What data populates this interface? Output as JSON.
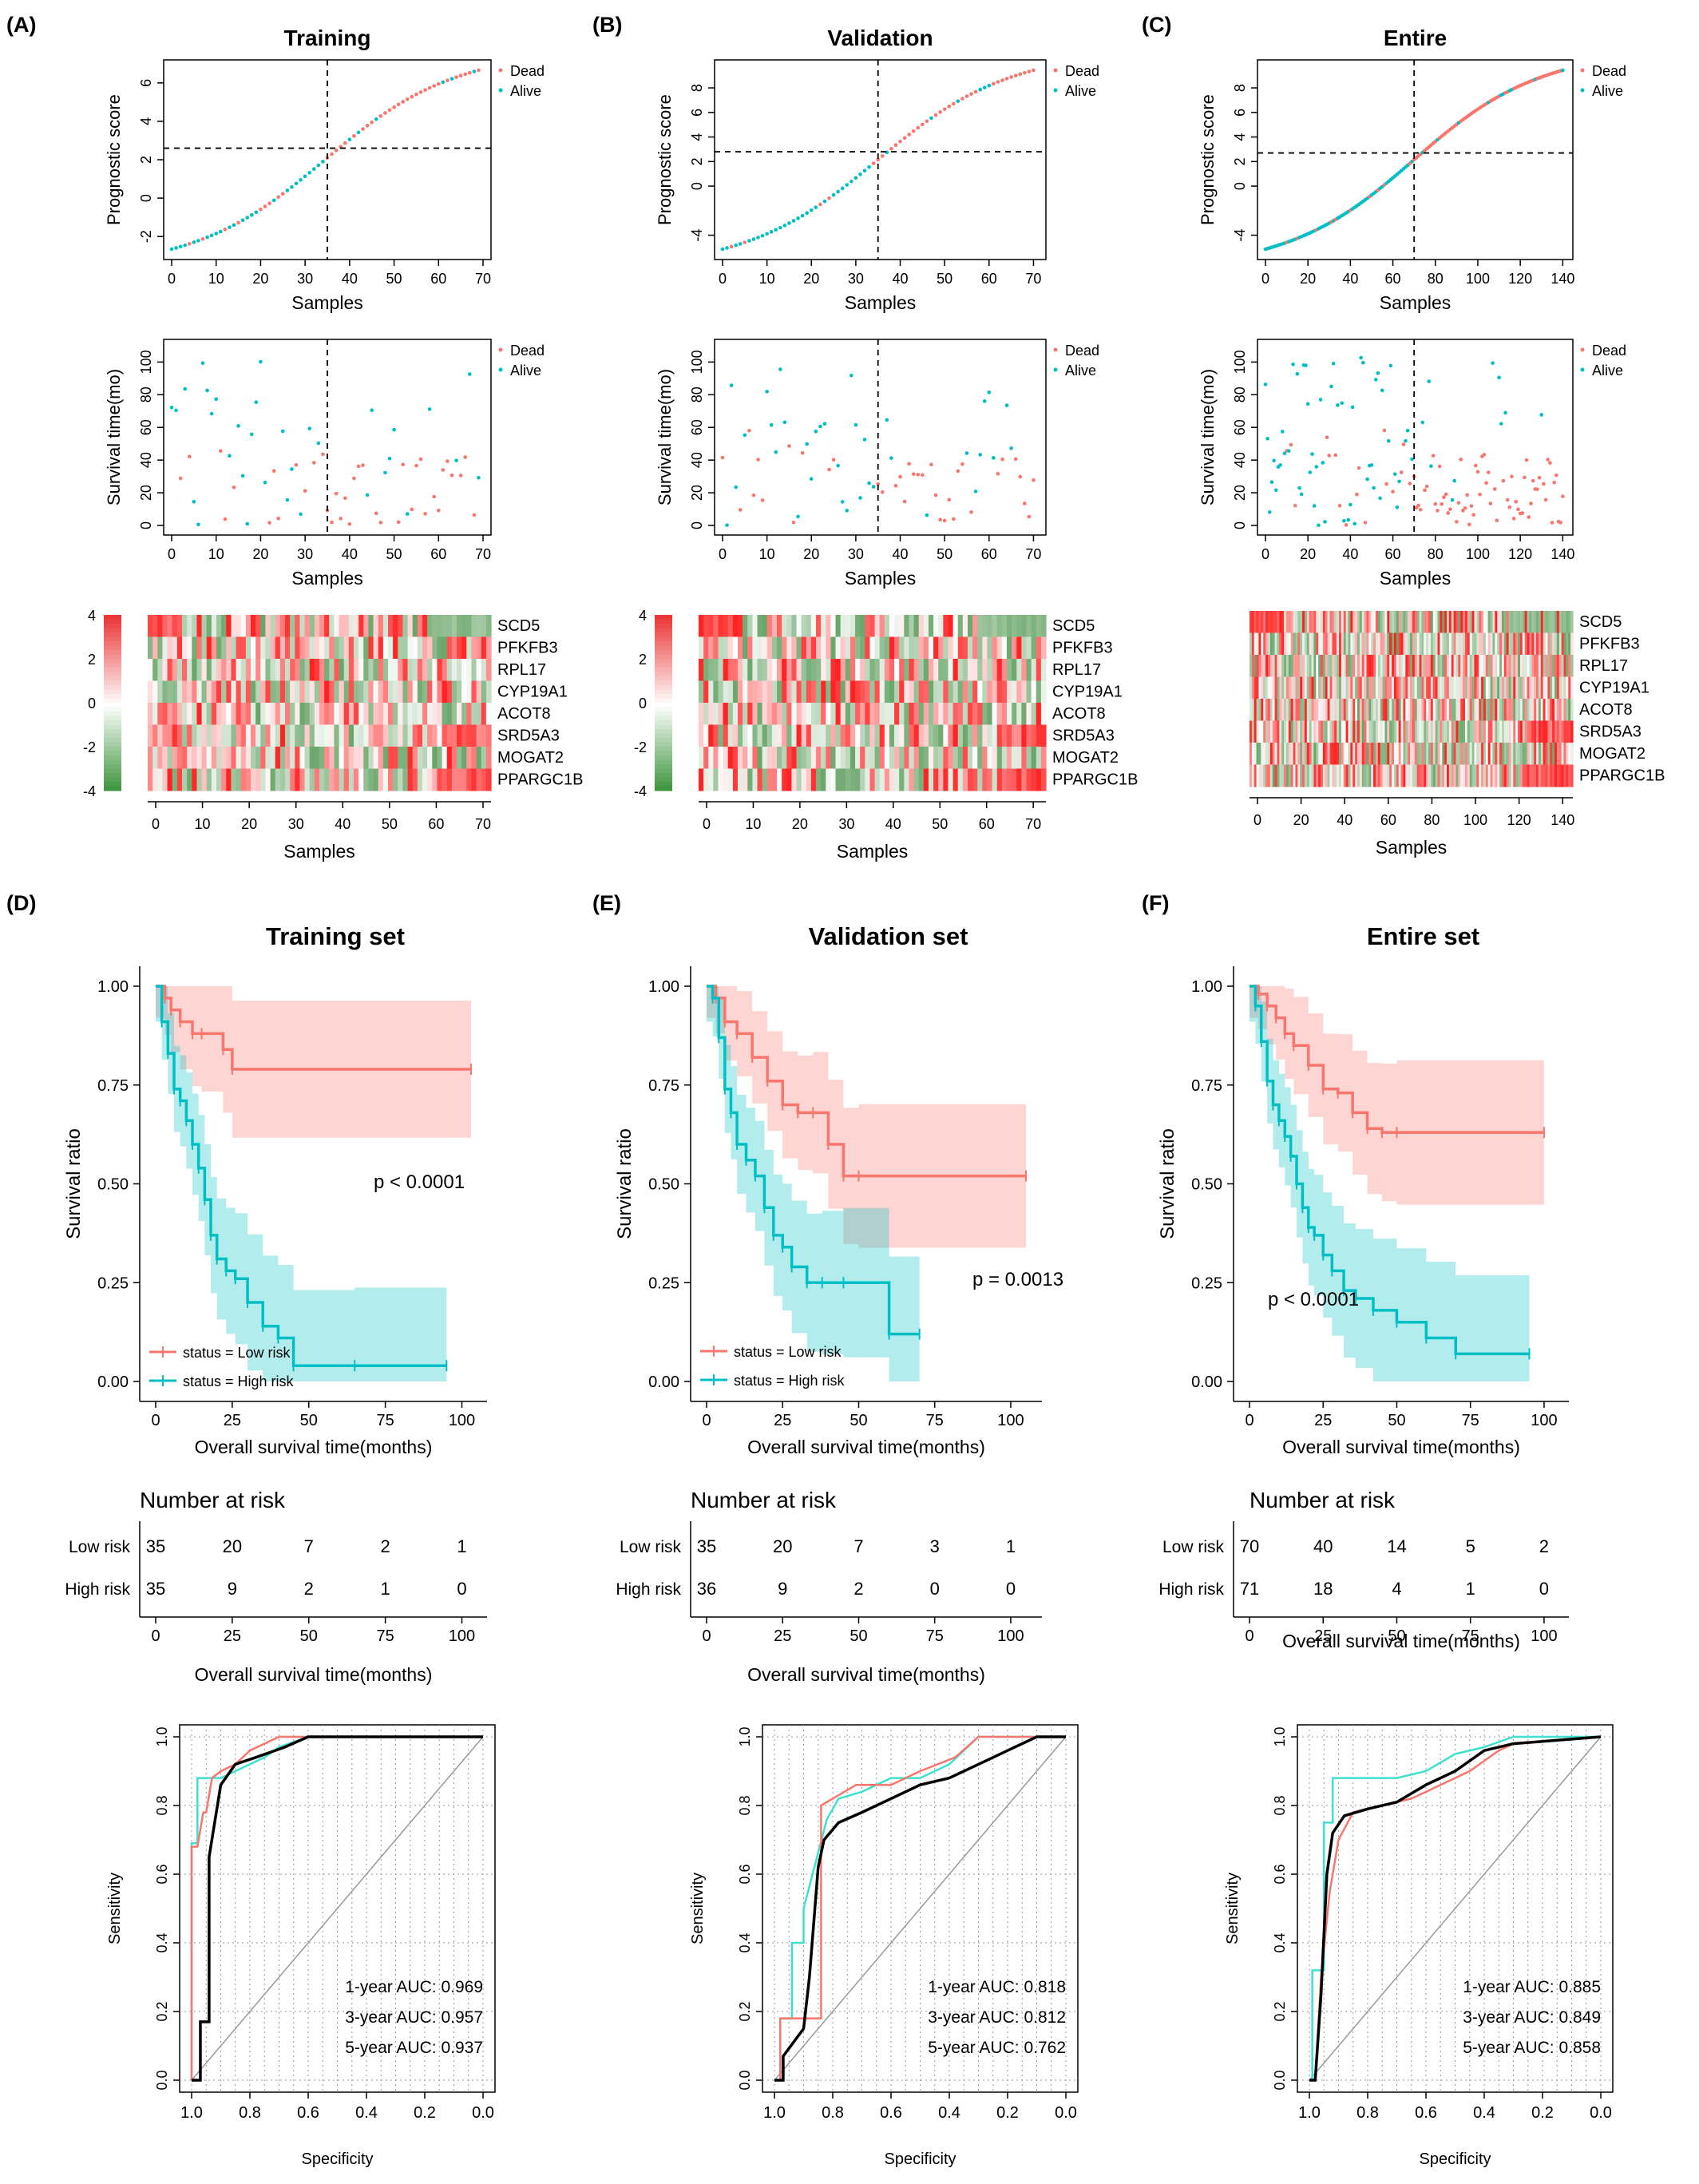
{
  "colors": {
    "dead": "#f8766d",
    "alive": "#00bfc4",
    "low": "#f8766d",
    "high": "#00bfc4",
    "one_year": "#40e0d0",
    "three_year": "#f8766d",
    "five_year": "#000000"
  },
  "labels": {
    "prognostic_score": "Prognostic score",
    "survival_time": "Survival time(mo)",
    "samples": "Samples",
    "dead": "Dead",
    "alive": "Alive",
    "survival_ratio": "Survival ratio",
    "os_time": "Overall survival time(months)",
    "number_at_risk": "Number at risk",
    "low_risk": "Low risk",
    "high_risk": "High risk",
    "status_low": "status = Low risk",
    "status_high": "status = High risk",
    "sensitivity": "Sensitivity",
    "specificity": "Specificity"
  },
  "genes": [
    "SCD5",
    "PFKFB3",
    "RPL17",
    "CYP19A1",
    "ACOT8",
    "SRD5A3",
    "MOGAT2",
    "PPARGC1B"
  ],
  "panels": [
    {
      "id": "training",
      "title": "Training",
      "km_title": "Training set",
      "letter_top": "(A)",
      "letter_km": "(D)",
      "n": 70,
      "cut": 35,
      "score_min": -2.7,
      "score_max": 6.7,
      "score_thr": 2.6,
      "score_ticks": [
        "-2",
        "0",
        "2",
        "4",
        "6"
      ],
      "score_tick_vals": [
        -2,
        0,
        2,
        4,
        6
      ],
      "sample_ticks": [
        "0",
        "10",
        "20",
        "30",
        "40",
        "50",
        "60",
        "70"
      ],
      "sample_tick_vals": [
        0,
        10,
        20,
        30,
        40,
        50,
        60,
        70
      ],
      "heat_ticks": [
        "4",
        "2",
        "0",
        "-2",
        "-4"
      ],
      "pvalue": "p < 0.0001",
      "risk_low": [
        "35",
        "20",
        "7",
        "2",
        "1"
      ],
      "risk_high": [
        "35",
        "9",
        "2",
        "1",
        "0"
      ],
      "auc1": "1-year AUC: 0.969",
      "auc3": "3-year AUC: 0.957",
      "auc5": "5-year AUC: 0.937"
    },
    {
      "id": "validation",
      "title": "Validation",
      "km_title": "Validation set",
      "letter_top": "(B)",
      "letter_km": "(E)",
      "n": 71,
      "cut": 35,
      "score_min": -5.2,
      "score_max": 9.5,
      "score_thr": 2.8,
      "score_ticks": [
        "-4",
        "0",
        "2",
        "4",
        "6",
        "8"
      ],
      "score_tick_vals": [
        -4,
        0,
        2,
        4,
        6,
        8
      ],
      "sample_ticks": [
        "0",
        "10",
        "20",
        "30",
        "40",
        "50",
        "60",
        "70"
      ],
      "sample_tick_vals": [
        0,
        10,
        20,
        30,
        40,
        50,
        60,
        70
      ],
      "heat_ticks": [
        "4",
        "2",
        "0",
        "-2",
        "-4"
      ],
      "pvalue": "p = 0.0013",
      "risk_low": [
        "35",
        "20",
        "7",
        "3",
        "1"
      ],
      "risk_high": [
        "36",
        "9",
        "2",
        "0",
        "0"
      ],
      "auc1": "1-year AUC: 0.818",
      "auc3": "3-year AUC: 0.812",
      "auc5": "5-year AUC: 0.762"
    },
    {
      "id": "entire",
      "title": "Entire",
      "km_title": "Entire set",
      "letter_top": "(C)",
      "letter_km": "(F)",
      "n": 141,
      "cut": 70,
      "score_min": -5.2,
      "score_max": 9.5,
      "score_thr": 2.7,
      "score_ticks": [
        "-4",
        "0",
        "2",
        "4",
        "6",
        "8"
      ],
      "score_tick_vals": [
        -4,
        0,
        2,
        4,
        6,
        8
      ],
      "sample_ticks": [
        "0",
        "20",
        "40",
        "60",
        "80",
        "100",
        "120",
        "140"
      ],
      "sample_tick_vals": [
        0,
        20,
        40,
        60,
        80,
        100,
        120,
        140
      ],
      "heat_ticks": [],
      "pvalue": "p < 0.0001",
      "risk_low": [
        "70",
        "40",
        "14",
        "5",
        "2"
      ],
      "risk_high": [
        "71",
        "18",
        "4",
        "1",
        "0"
      ],
      "auc1": "1-year AUC: 0.885",
      "auc3": "3-year AUC: 0.849",
      "auc5": "5-year AUC: 0.858"
    }
  ],
  "km_axes": {
    "x_ticks": [
      "0",
      "25",
      "50",
      "75",
      "100"
    ],
    "x_vals": [
      0,
      25,
      50,
      75,
      100
    ],
    "y_ticks": [
      "0.00",
      "0.25",
      "0.50",
      "0.75",
      "1.00"
    ],
    "y_vals": [
      0,
      0.25,
      0.5,
      0.75,
      1.0
    ]
  },
  "roc_axes": {
    "y_ticks": [
      "0.0",
      "0.2",
      "0.4",
      "0.6",
      "0.8",
      "1.0"
    ],
    "y_vals": [
      0,
      0.2,
      0.4,
      0.6,
      0.8,
      1.0
    ],
    "x_ticks": [
      "1.0",
      "0.8",
      "0.6",
      "0.4",
      "0.2",
      "0.0"
    ],
    "x_vals": [
      1.0,
      0.8,
      0.6,
      0.4,
      0.2,
      0.0
    ]
  },
  "chart_data": [
    {
      "type": "scatter",
      "panel": "Training",
      "series": [
        {
          "name": "Dead"
        },
        {
          "name": "Alive"
        }
      ],
      "xlabel": "Samples",
      "ylabel": "Prognostic score",
      "xlim": [
        0,
        70
      ],
      "ylim": [
        -2.7,
        6.7
      ],
      "cutoff_sample": 35,
      "cutoff_score": 2.6
    },
    {
      "type": "scatter",
      "panel": "Validation",
      "series": [
        {
          "name": "Dead"
        },
        {
          "name": "Alive"
        }
      ],
      "xlabel": "Samples",
      "ylabel": "Prognostic score",
      "xlim": [
        0,
        71
      ],
      "ylim": [
        -5.2,
        9.5
      ],
      "cutoff_sample": 35,
      "cutoff_score": 2.8
    },
    {
      "type": "scatter",
      "panel": "Entire",
      "series": [
        {
          "name": "Dead"
        },
        {
          "name": "Alive"
        }
      ],
      "xlabel": "Samples",
      "ylabel": "Prognostic score",
      "xlim": [
        0,
        141
      ],
      "ylim": [
        -5.2,
        9.5
      ],
      "cutoff_sample": 70,
      "cutoff_score": 2.7
    },
    {
      "type": "line",
      "panel": "Training set",
      "xlabel": "Overall survival time(months)",
      "ylabel": "Survival ratio",
      "xlim": [
        0,
        103
      ],
      "ylim": [
        0,
        1
      ],
      "series": [
        {
          "name": "status = Low risk",
          "x": [
            0,
            3,
            5,
            8,
            12,
            15,
            22,
            25,
            103
          ],
          "y": [
            1,
            0.97,
            0.94,
            0.91,
            0.88,
            0.88,
            0.84,
            0.79,
            0.79
          ]
        },
        {
          "name": "status = High risk",
          "x": [
            0,
            2,
            4,
            6,
            8,
            10,
            12,
            14,
            16,
            18,
            20,
            23,
            26,
            30,
            35,
            40,
            45,
            65,
            95
          ],
          "y": [
            1,
            0.91,
            0.83,
            0.74,
            0.71,
            0.66,
            0.6,
            0.54,
            0.46,
            0.37,
            0.31,
            0.28,
            0.26,
            0.2,
            0.14,
            0.11,
            0.04,
            0.04,
            0.04
          ]
        }
      ],
      "annotation": "p < 0.0001"
    },
    {
      "type": "line",
      "panel": "Validation set",
      "xlabel": "Overall survival time(months)",
      "ylabel": "Survival ratio",
      "xlim": [
        0,
        105
      ],
      "ylim": [
        0,
        1
      ],
      "series": [
        {
          "name": "status = Low risk",
          "x": [
            0,
            3,
            6,
            10,
            15,
            20,
            25,
            30,
            35,
            40,
            45,
            50,
            105
          ],
          "y": [
            1,
            0.97,
            0.91,
            0.88,
            0.82,
            0.76,
            0.7,
            0.68,
            0.68,
            0.6,
            0.52,
            0.52,
            0.52
          ]
        },
        {
          "name": "status = High risk",
          "x": [
            0,
            2,
            4,
            6,
            8,
            10,
            13,
            16,
            19,
            22,
            25,
            28,
            33,
            38,
            45,
            60,
            70
          ],
          "y": [
            1,
            0.97,
            0.87,
            0.74,
            0.68,
            0.6,
            0.56,
            0.52,
            0.44,
            0.37,
            0.34,
            0.29,
            0.25,
            0.25,
            0.25,
            0.12,
            0.12
          ]
        }
      ],
      "annotation": "p = 0.0013"
    },
    {
      "type": "line",
      "panel": "Entire set",
      "xlabel": "Overall survival time(months)",
      "ylabel": "Survival ratio",
      "xlim": [
        0,
        103
      ],
      "ylim": [
        0,
        1
      ],
      "series": [
        {
          "name": "status = Low risk",
          "x": [
            0,
            3,
            6,
            9,
            12,
            15,
            20,
            25,
            30,
            35,
            40,
            45,
            50,
            100
          ],
          "y": [
            1,
            0.98,
            0.95,
            0.92,
            0.88,
            0.85,
            0.8,
            0.74,
            0.73,
            0.68,
            0.64,
            0.63,
            0.63,
            0.63
          ]
        },
        {
          "name": "status = High risk",
          "x": [
            0,
            2,
            4,
            6,
            8,
            10,
            12,
            14,
            16,
            18,
            20,
            22,
            25,
            28,
            32,
            36,
            42,
            50,
            60,
            70,
            95
          ],
          "y": [
            1,
            0.95,
            0.86,
            0.76,
            0.7,
            0.66,
            0.62,
            0.57,
            0.5,
            0.44,
            0.39,
            0.37,
            0.32,
            0.28,
            0.23,
            0.21,
            0.18,
            0.15,
            0.11,
            0.07,
            0.07
          ]
        }
      ],
      "annotation": "p < 0.0001"
    },
    {
      "type": "line",
      "panel": "ROC Training",
      "xlabel": "Specificity",
      "ylabel": "Sensitivity",
      "xlim": [
        1,
        0
      ],
      "ylim": [
        0,
        1
      ],
      "series": [
        {
          "name": "1-year AUC: 0.969",
          "x": [
            1,
            1,
            0.98,
            0.98,
            0.9,
            0.85,
            0.75,
            0.7,
            0.6,
            0
          ],
          "y": [
            0,
            0.69,
            0.69,
            0.88,
            0.88,
            0.9,
            0.94,
            0.97,
            1,
            1
          ]
        },
        {
          "name": "3-year AUC: 0.957",
          "x": [
            1,
            1,
            0.98,
            0.96,
            0.95,
            0.93,
            0.9,
            0.85,
            0.8,
            0.7,
            0.6,
            0
          ],
          "y": [
            0,
            0.68,
            0.68,
            0.78,
            0.78,
            0.88,
            0.9,
            0.92,
            0.96,
            1,
            1,
            1
          ]
        },
        {
          "name": "5-year AUC: 0.937",
          "x": [
            1,
            0.97,
            0.97,
            0.94,
            0.94,
            0.9,
            0.85,
            0.78,
            0.68,
            0.6,
            0
          ],
          "y": [
            0,
            0,
            0.17,
            0.17,
            0.65,
            0.86,
            0.92,
            0.94,
            0.97,
            1,
            1
          ]
        }
      ]
    },
    {
      "type": "line",
      "panel": "ROC Validation",
      "xlabel": "Specificity",
      "ylabel": "Sensitivity",
      "xlim": [
        1,
        0
      ],
      "ylim": [
        0,
        1
      ],
      "series": [
        {
          "name": "1-year AUC: 0.818",
          "x": [
            1,
            0.98,
            0.98,
            0.94,
            0.94,
            0.9,
            0.9,
            0.86,
            0.82,
            0.78,
            0.7,
            0.6,
            0.5,
            0.4,
            0.3,
            0
          ],
          "y": [
            0,
            0,
            0.18,
            0.18,
            0.4,
            0.4,
            0.5,
            0.63,
            0.76,
            0.82,
            0.84,
            0.88,
            0.88,
            0.92,
            1,
            1
          ]
        },
        {
          "name": "3-year AUC: 0.812",
          "x": [
            1,
            0.98,
            0.98,
            0.84,
            0.84,
            0.8,
            0.72,
            0.6,
            0.5,
            0.38,
            0.3,
            0
          ],
          "y": [
            0,
            0,
            0.18,
            0.18,
            0.8,
            0.82,
            0.86,
            0.86,
            0.9,
            0.94,
            1,
            1
          ]
        },
        {
          "name": "5-year AUC: 0.762",
          "x": [
            1,
            0.97,
            0.97,
            0.9,
            0.88,
            0.85,
            0.83,
            0.78,
            0.7,
            0.6,
            0.5,
            0.4,
            0.3,
            0.2,
            0.1,
            0
          ],
          "y": [
            0,
            0,
            0.07,
            0.15,
            0.3,
            0.62,
            0.7,
            0.75,
            0.78,
            0.82,
            0.86,
            0.88,
            0.92,
            0.96,
            1,
            1
          ]
        }
      ]
    },
    {
      "type": "line",
      "panel": "ROC Entire",
      "xlabel": "Specificity",
      "ylabel": "Sensitivity",
      "xlim": [
        1,
        0
      ],
      "ylim": [
        0,
        1
      ],
      "series": [
        {
          "name": "1-year AUC: 0.885",
          "x": [
            1,
            0.99,
            0.99,
            0.95,
            0.95,
            0.92,
            0.92,
            0.8,
            0.7,
            0.6,
            0.5,
            0.4,
            0.3,
            0
          ],
          "y": [
            0,
            0,
            0.32,
            0.32,
            0.75,
            0.75,
            0.88,
            0.88,
            0.88,
            0.9,
            0.95,
            0.97,
            1,
            1
          ]
        },
        {
          "name": "3-year AUC: 0.849",
          "x": [
            1,
            0.98,
            0.96,
            0.93,
            0.9,
            0.85,
            0.75,
            0.65,
            0.55,
            0.45,
            0.35,
            0.3,
            0
          ],
          "y": [
            0,
            0,
            0.3,
            0.55,
            0.7,
            0.78,
            0.8,
            0.82,
            0.86,
            0.9,
            0.96,
            0.98,
            1
          ]
        },
        {
          "name": "5-year AUC: 0.858",
          "x": [
            1,
            0.98,
            0.96,
            0.94,
            0.92,
            0.88,
            0.8,
            0.7,
            0.6,
            0.5,
            0.4,
            0.3,
            0
          ],
          "y": [
            0,
            0,
            0.25,
            0.6,
            0.72,
            0.77,
            0.79,
            0.81,
            0.86,
            0.9,
            0.96,
            0.98,
            1
          ]
        }
      ]
    }
  ]
}
